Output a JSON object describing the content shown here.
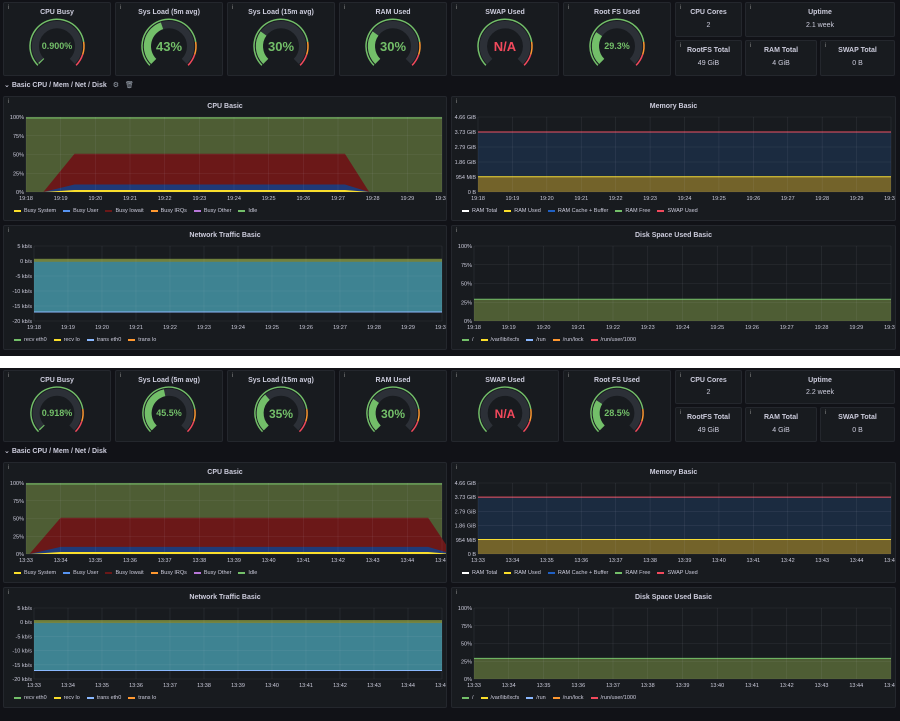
{
  "colors": {
    "green": "#73bf69",
    "yellow": "#fade2a",
    "orange": "#ff9830",
    "red": "#f2495c",
    "blue": "#5794f2",
    "purple": "#b877d9",
    "idle": "#4e5d34",
    "iowait": "#6b1818",
    "cyan": "#8ab8ff",
    "teal": "#3f7f8f"
  },
  "icons": {
    "info": "info-icon",
    "collapse": "chevron-down-icon",
    "settings": "gear-icon",
    "delete": "trash-icon"
  },
  "row_title": "Basic CPU / Mem / Net / Disk",
  "shot1": {
    "gauges": [
      {
        "title": "CPU Busy",
        "value": "0.900%",
        "fill": 0.009
      },
      {
        "title": "Sys Load (5m avg)",
        "value": "43%",
        "fill": 0.43
      },
      {
        "title": "Sys Load (15m avg)",
        "value": "30%",
        "fill": 0.3
      },
      {
        "title": "RAM Used",
        "value": "30%",
        "fill": 0.3
      },
      {
        "title": "SWAP Used",
        "value": "N/A",
        "fill": 0
      },
      {
        "title": "Root FS Used",
        "value": "29.3%",
        "fill": 0.293
      }
    ],
    "stats": [
      {
        "title": "CPU Cores",
        "value": "2"
      },
      {
        "title": "Uptime",
        "value": "2.1 week"
      },
      {
        "title": "RootFS Total",
        "value": "49 GiB"
      },
      {
        "title": "RAM Total",
        "value": "4 GiB"
      },
      {
        "title": "SWAP Total",
        "value": "0 B"
      }
    ],
    "x_ticks": [
      "19:18",
      "19:19",
      "19:20",
      "19:21",
      "19:22",
      "19:23",
      "19:24",
      "19:25",
      "19:26",
      "19:27",
      "19:28",
      "19:29",
      "19:30"
    ],
    "net_ticks": [
      "19:18",
      "19:19",
      "19:20",
      "19:21",
      "19:22",
      "19:23",
      "19:24",
      "19:25",
      "19:26",
      "19:27",
      "19:28",
      "19:29",
      "19:30"
    ],
    "cpu_window": [
      1.4,
      9.2
    ]
  },
  "shot2": {
    "gauges": [
      {
        "title": "CPU Busy",
        "value": "0.918%",
        "fill": 0.009
      },
      {
        "title": "Sys Load (5m avg)",
        "value": "45.5%",
        "fill": 0.455
      },
      {
        "title": "Sys Load (15m avg)",
        "value": "35%",
        "fill": 0.35
      },
      {
        "title": "RAM Used",
        "value": "30%",
        "fill": 0.3
      },
      {
        "title": "SWAP Used",
        "value": "N/A",
        "fill": 0
      },
      {
        "title": "Root FS Used",
        "value": "28.5%",
        "fill": 0.285
      }
    ],
    "stats": [
      {
        "title": "CPU Cores",
        "value": "2"
      },
      {
        "title": "Uptime",
        "value": "2.2 week"
      },
      {
        "title": "RootFS Total",
        "value": "49 GiB"
      },
      {
        "title": "RAM Total",
        "value": "4 GiB"
      },
      {
        "title": "SWAP Total",
        "value": "0 B"
      }
    ],
    "x_ticks": [
      "13:33",
      "13:34",
      "13:35",
      "13:36",
      "13:37",
      "13:38",
      "13:39",
      "13:40",
      "13:41",
      "13:42",
      "13:43",
      "13:44",
      "13:45"
    ],
    "net_ticks": [
      "13:33",
      "13:34",
      "13:35",
      "13:36",
      "13:37",
      "13:38",
      "13:39",
      "13:40",
      "13:41",
      "13:42",
      "13:43",
      "13:44",
      "13:45"
    ],
    "cpu_window": [
      1.0,
      11.6
    ]
  },
  "panels": {
    "cpu": {
      "title": "CPU Basic",
      "y_ticks": [
        "100%",
        "75%",
        "50%",
        "25%",
        "0%"
      ],
      "legend": [
        {
          "label": "Busy System",
          "color": "#fade2a"
        },
        {
          "label": "Busy User",
          "color": "#5794f2"
        },
        {
          "label": "Busy Iowait",
          "color": "#6b1818"
        },
        {
          "label": "Busy IRQs",
          "color": "#ff9830"
        },
        {
          "label": "Busy Other",
          "color": "#b877d9"
        },
        {
          "label": "Idle",
          "color": "#73bf69"
        }
      ]
    },
    "mem": {
      "title": "Memory Basic",
      "y_ticks": [
        "4.66 GiB",
        "3.73 GiB",
        "2.79 GiB",
        "1.86 GiB",
        "954 MiB",
        "0 B"
      ],
      "legend": [
        {
          "label": "RAM Total",
          "color": "#ffffff"
        },
        {
          "label": "RAM Used",
          "color": "#fade2a"
        },
        {
          "label": "RAM Cache + Buffer",
          "color": "#1f60c4"
        },
        {
          "label": "RAM Free",
          "color": "#73bf69"
        },
        {
          "label": "SWAP Used",
          "color": "#f2495c"
        }
      ]
    },
    "net": {
      "title": "Network Traffic Basic",
      "y_ticks": [
        "5 kb/s",
        "0 b/s",
        "-5 kb/s",
        "-10 kb/s",
        "-15 kb/s",
        "-20 kb/s"
      ],
      "legend": [
        {
          "label": "recv eth0",
          "color": "#73bf69"
        },
        {
          "label": "recv lo",
          "color": "#fade2a"
        },
        {
          "label": "trans eth0",
          "color": "#8ab8ff"
        },
        {
          "label": "trans lo",
          "color": "#ff9830"
        }
      ]
    },
    "disk": {
      "title": "Disk Space Used Basic",
      "y_ticks": [
        "100%",
        "75%",
        "50%",
        "25%",
        "0%"
      ],
      "legend": [
        {
          "label": "/",
          "color": "#73bf69"
        },
        {
          "label": "/var/lib/lxcfs",
          "color": "#fade2a"
        },
        {
          "label": "/run",
          "color": "#8ab8ff"
        },
        {
          "label": "/run/lock",
          "color": "#ff9830"
        },
        {
          "label": "/run/user/1000",
          "color": "#f2495c"
        }
      ]
    }
  },
  "chart_data": [
    {
      "type": "area",
      "title": "CPU Basic",
      "x": [
        "19:18",
        "19:19",
        "19:20",
        "19:21",
        "19:22",
        "19:23",
        "19:24",
        "19:25",
        "19:26",
        "19:27",
        "19:28",
        "19:29",
        "19:30"
      ],
      "ylim": [
        0,
        100
      ],
      "series": [
        {
          "name": "Busy System",
          "values": [
            1,
            2,
            4,
            4,
            4,
            4,
            4,
            4,
            4,
            4,
            4,
            1,
            1
          ]
        },
        {
          "name": "Busy User",
          "values": [
            1,
            3,
            6,
            6,
            6,
            6,
            6,
            6,
            6,
            6,
            6,
            1,
            1
          ]
        },
        {
          "name": "Busy Iowait",
          "values": [
            0,
            30,
            37,
            37,
            37,
            37,
            37,
            37,
            37,
            37,
            37,
            0,
            0
          ]
        },
        {
          "name": "Idle",
          "values": [
            98,
            65,
            53,
            53,
            53,
            53,
            53,
            53,
            53,
            53,
            53,
            98,
            98
          ]
        }
      ]
    },
    {
      "type": "area",
      "title": "Memory Basic",
      "ylim": [
        0,
        4.66
      ],
      "series": [
        {
          "name": "RAM Total",
          "values": [
            3.73
          ]
        },
        {
          "name": "RAM Used",
          "values": [
            0.95
          ]
        },
        {
          "name": "RAM Cache + Buffer",
          "values": [
            2.78
          ]
        }
      ]
    },
    {
      "type": "area",
      "title": "Network Traffic Basic",
      "ylim": [
        -20,
        5
      ],
      "series": [
        {
          "name": "recv eth0",
          "values": [
            0.2
          ]
        },
        {
          "name": "trans eth0",
          "values": [
            -17
          ]
        }
      ]
    },
    {
      "type": "area",
      "title": "Disk Space Used Basic",
      "ylim": [
        0,
        100
      ],
      "series": [
        {
          "name": "/",
          "values": [
            29
          ]
        }
      ]
    }
  ]
}
